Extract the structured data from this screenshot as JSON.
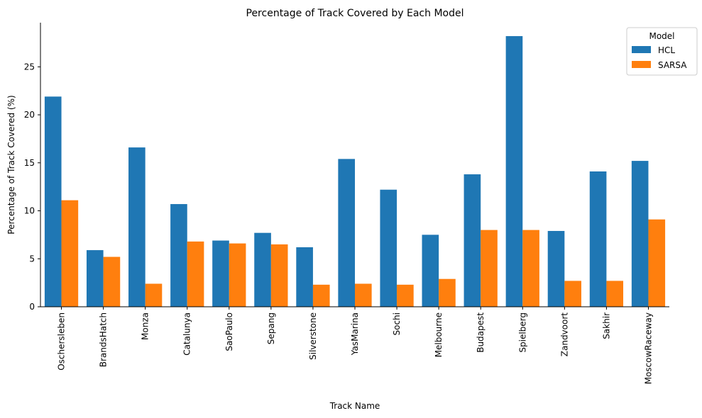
{
  "chart_data": {
    "type": "bar",
    "title": "Percentage of Track Covered by Each Model",
    "xlabel": "Track Name",
    "ylabel": "Percentage of Track Covered (%)",
    "ylim": [
      0,
      29.6
    ],
    "yticks": [
      0,
      5,
      10,
      15,
      20,
      25
    ],
    "categories": [
      "Oschersleben",
      "BrandsHatch",
      "Monza",
      "Catalunya",
      "SaoPaulo",
      "Sepang",
      "Silverstone",
      "YasMarina",
      "Sochi",
      "Melbourne",
      "Budapest",
      "Spielberg",
      "Zandvoort",
      "Sakhir",
      "MoscowRaceway"
    ],
    "series": [
      {
        "name": "HCL",
        "color": "#1f77b4",
        "values": [
          21.9,
          5.9,
          16.6,
          10.7,
          6.9,
          7.7,
          6.2,
          15.4,
          12.2,
          7.5,
          13.8,
          28.2,
          7.9,
          14.1,
          15.2
        ]
      },
      {
        "name": "SARSA",
        "color": "#ff7f0e",
        "values": [
          11.1,
          5.2,
          2.4,
          6.8,
          6.6,
          6.5,
          2.3,
          2.4,
          2.3,
          2.9,
          8.0,
          8.0,
          2.7,
          2.7,
          9.1
        ]
      }
    ],
    "legend": {
      "title": "Model",
      "position": "top-right"
    },
    "grid": false
  }
}
